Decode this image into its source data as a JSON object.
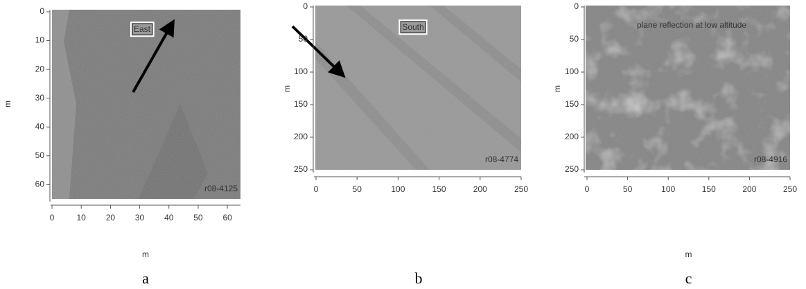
{
  "panels": [
    {
      "caption": "a",
      "annotation": "East",
      "image_id": "r08-4125",
      "x_label": "m",
      "y_label": "m",
      "xlim": [
        0,
        64
      ],
      "ylim": [
        0,
        64
      ],
      "xticks": [
        0,
        10,
        20,
        30,
        40,
        50,
        60
      ],
      "yticks": [
        0,
        10,
        20,
        30,
        40,
        50,
        60
      ]
    },
    {
      "caption": "b",
      "annotation": "South",
      "image_id": "r08-4774",
      "y_label": "m",
      "xlim": [
        0,
        250
      ],
      "ylim": [
        0,
        250
      ],
      "xticks": [
        0,
        50,
        100,
        150,
        200,
        250
      ],
      "yticks": [
        0,
        50,
        100,
        150,
        200,
        250
      ]
    },
    {
      "caption": "c",
      "annotation": "plane reflection at low altitude",
      "image_id": "r08-4916",
      "x_label": "m",
      "y_label": "m",
      "xlim": [
        0,
        250
      ],
      "ylim": [
        0,
        250
      ],
      "xticks": [
        0,
        50,
        100,
        150,
        200,
        250
      ],
      "yticks": [
        0,
        50,
        100,
        150,
        200,
        250
      ]
    }
  ]
}
